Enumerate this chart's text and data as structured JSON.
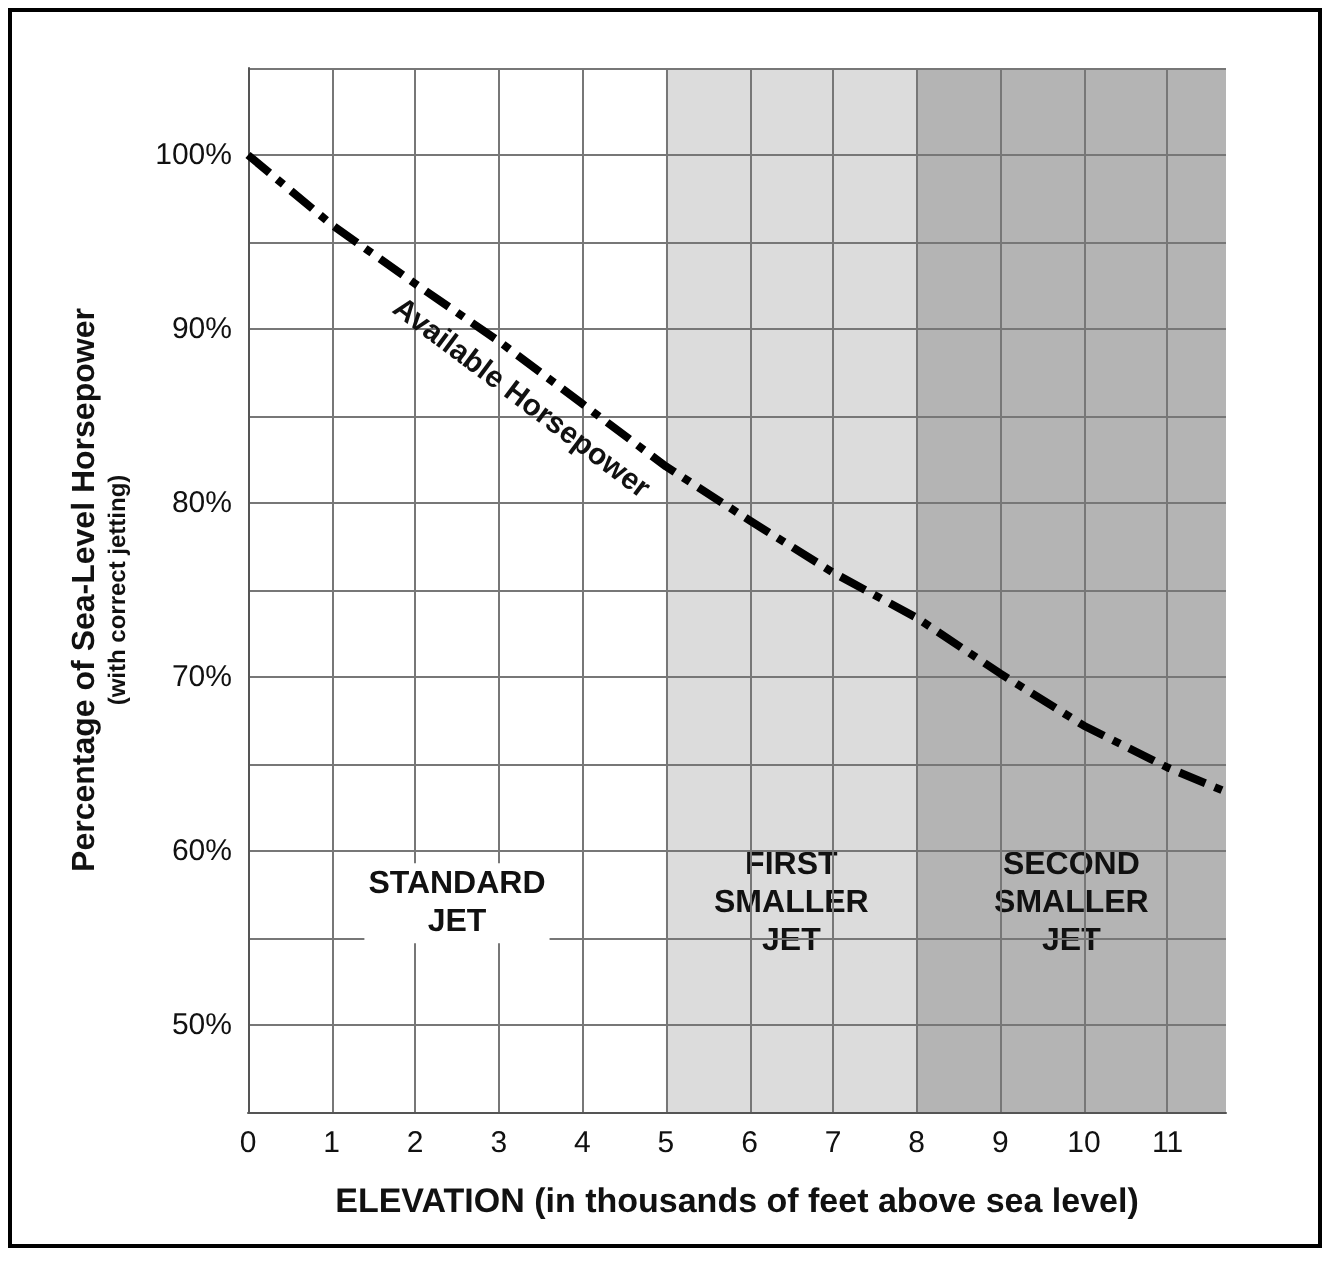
{
  "chart_data": {
    "type": "line",
    "xlabel": "ELEVATION (in thousands of feet above sea level)",
    "ylabel": "Percentage of Sea-Level Horsepower\n(with correct jetting)",
    "x": [
      0,
      1,
      2,
      3,
      4,
      5,
      6,
      7,
      8,
      9,
      10,
      11,
      11.7
    ],
    "series": [
      {
        "color": "#000000",
        "line_style": "dashed",
        "marker": "none",
        "values": [
          100,
          96,
          92.6,
          89.3,
          85.7,
          82.1,
          79,
          76,
          73.4,
          70.2,
          67.2,
          64.8,
          63.4
        ]
      }
    ],
    "xlim": [
      0,
      11.7
    ],
    "xticks": [
      0,
      1,
      2,
      3,
      4,
      5,
      6,
      7,
      8,
      9,
      10,
      11
    ],
    "ylim": [
      45,
      105
    ],
    "yticks": [
      {
        "value": 50,
        "label": "50%"
      },
      {
        "value": 55,
        "label": null
      },
      {
        "value": 60,
        "label": "60%"
      },
      {
        "value": 65,
        "label": null
      },
      {
        "value": 70,
        "label": "70%"
      },
      {
        "value": 75,
        "label": null
      },
      {
        "value": 80,
        "label": "80%"
      },
      {
        "value": 85,
        "label": null
      },
      {
        "value": 90,
        "label": "90%"
      },
      {
        "value": 95,
        "label": null
      },
      {
        "value": 100,
        "label": "100%"
      },
      {
        "value": 105,
        "label": null
      }
    ],
    "bands": [
      {
        "axis": "x",
        "from": 5,
        "to": 8,
        "label": "FIRST\nSMALLER\nJET",
        "color": "#dcdcdc"
      },
      {
        "axis": "x",
        "from": 8,
        "to": 11.7,
        "label": "SECOND\nSMALLER\nJET",
        "color": "#b4b4b4"
      }
    ],
    "annotations": [
      "Available Horsepower",
      "STANDARD\nJET"
    ],
    "grid": true
  }
}
